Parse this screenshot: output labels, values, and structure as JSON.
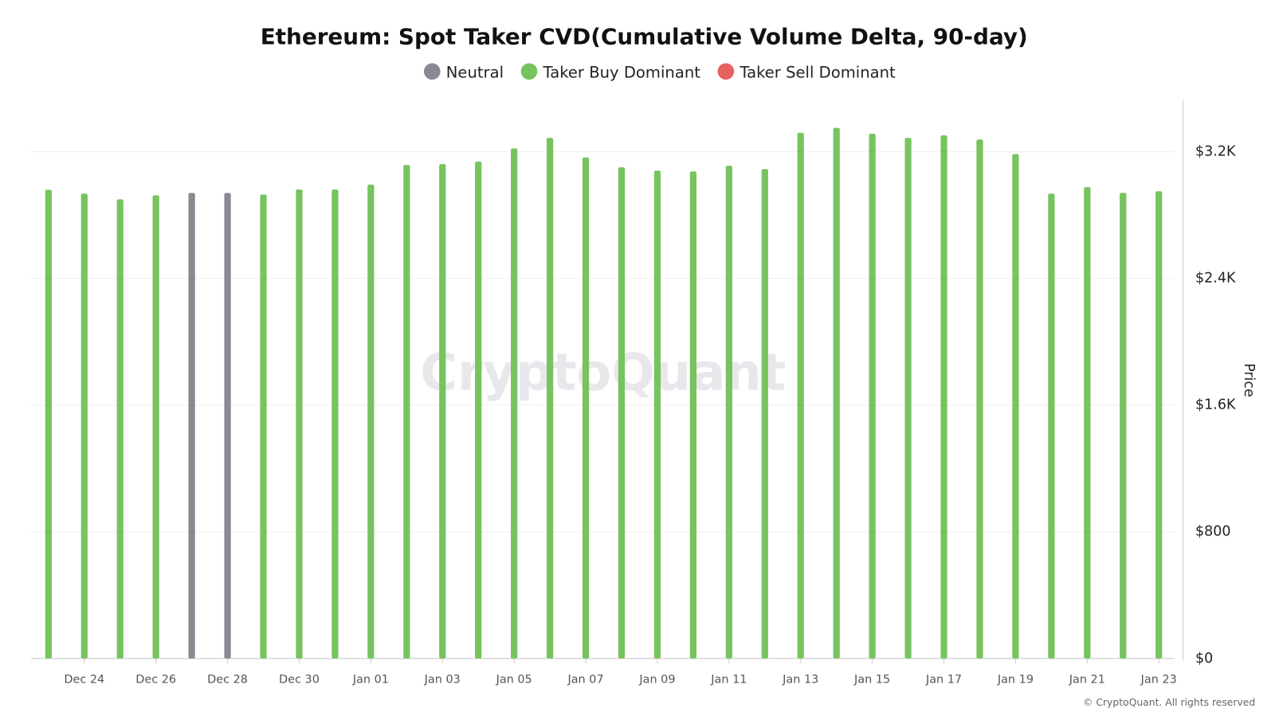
{
  "chart_data": {
    "type": "bar",
    "title": "Ethereum: Spot Taker CVD(Cumulative Volume Delta, 90-day)",
    "y_axis_label": "Price",
    "watermark": "CryptoQuant",
    "source": "© CryptoQuant. All rights reserved",
    "categories": [
      null,
      "Dec 24",
      null,
      "Dec 26",
      null,
      "Dec 28",
      null,
      "Dec 30",
      null,
      "Jan 01",
      null,
      "Jan 03",
      null,
      "Jan 05",
      null,
      "Jan 07",
      null,
      "Jan 09",
      null,
      "Jan 11",
      null,
      "Jan 13",
      null,
      "Jan 15",
      null,
      "Jan 17",
      null,
      "Jan 19",
      null,
      "Jan 21",
      null,
      "Jan 23"
    ],
    "series": [
      {
        "name": "Neutral",
        "color": "#8a8891",
        "values": [
          null,
          null,
          null,
          null,
          2940,
          2940,
          null,
          null,
          null,
          null,
          null,
          null,
          null,
          null,
          null,
          null,
          null,
          null,
          null,
          null,
          null,
          null,
          null,
          null,
          null,
          null,
          null,
          null,
          null,
          null,
          null,
          null
        ]
      },
      {
        "name": "Taker Buy Dominant",
        "color": "#77c35f",
        "values": [
          2960,
          2936,
          2900,
          2925,
          null,
          null,
          2930,
          2962,
          2962,
          2993,
          3117,
          3122,
          3138,
          3221,
          3288,
          3164,
          3102,
          3081,
          3076,
          3112,
          3091,
          3320,
          3351,
          3314,
          3288,
          3304,
          3278,
          3185,
          2936,
          2977,
          2941,
          2951
        ]
      },
      {
        "name": "Taker Sell Dominant",
        "color": "#e86060",
        "values": [
          null,
          null,
          null,
          null,
          null,
          null,
          null,
          null,
          null,
          null,
          null,
          null,
          null,
          null,
          null,
          null,
          null,
          null,
          null,
          null,
          null,
          null,
          null,
          null,
          null,
          null,
          null,
          null,
          null,
          null,
          null,
          null
        ]
      }
    ],
    "ylim": [
      0,
      3500
    ],
    "yticks": [
      {
        "value": 0,
        "label": "$0"
      },
      {
        "value": 800,
        "label": "$800"
      },
      {
        "value": 1600,
        "label": "$1.6K"
      },
      {
        "value": 2400,
        "label": "$2.4K"
      },
      {
        "value": 3200,
        "label": "$3.2K"
      }
    ],
    "grid": true
  }
}
